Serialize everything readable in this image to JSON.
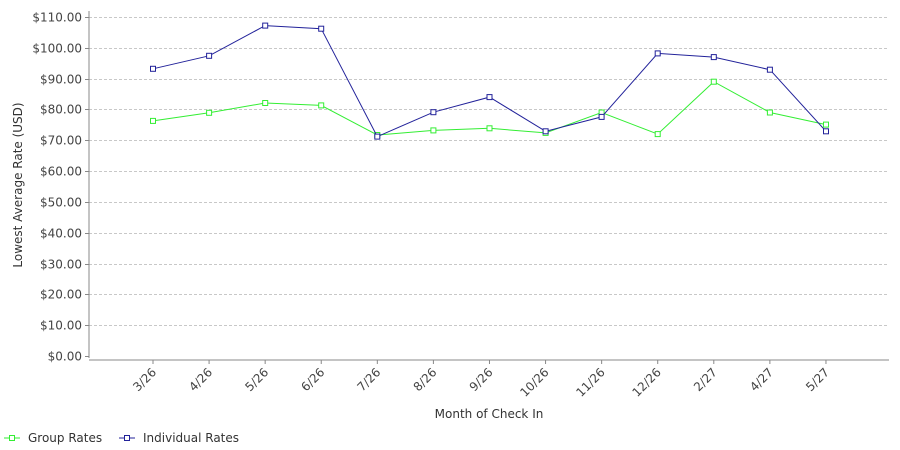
{
  "chart_data": {
    "type": "line",
    "xlabel": "Month of Check In",
    "ylabel": "Lowest Average Rate (USD)",
    "categories": [
      "3/26",
      "4/26",
      "5/26",
      "6/26",
      "7/26",
      "8/26",
      "9/26",
      "10/26",
      "11/26",
      "12/26",
      "2/27",
      "4/27",
      "5/27"
    ],
    "ylim": [
      0,
      110
    ],
    "y_ticks": [
      {
        "value": 0,
        "label": "$0.00"
      },
      {
        "value": 10,
        "label": "$10.00"
      },
      {
        "value": 20,
        "label": "$20.00"
      },
      {
        "value": 30,
        "label": "$30.00"
      },
      {
        "value": 40,
        "label": "$40.00"
      },
      {
        "value": 50,
        "label": "$50.00"
      },
      {
        "value": 60,
        "label": "$60.00"
      },
      {
        "value": 70,
        "label": "$70.00"
      },
      {
        "value": 80,
        "label": "$80.00"
      },
      {
        "value": 90,
        "label": "$90.00"
      },
      {
        "value": 100,
        "label": "$100.00"
      },
      {
        "value": 110,
        "label": "$110.00"
      }
    ],
    "grid": true,
    "legend_position": "bottom-left",
    "series": [
      {
        "name": "Group Rates",
        "color": "#33ee33",
        "values": [
          76.3,
          78.9,
          82.1,
          81.3,
          71.7,
          73.2,
          73.9,
          72.4,
          79.0,
          72.0,
          89.0,
          79.0,
          75.1
        ]
      },
      {
        "name": "Individual Rates",
        "color": "#22229a",
        "values": [
          93.2,
          97.4,
          107.2,
          106.2,
          71.2,
          79.1,
          84.0,
          72.9,
          77.6,
          98.2,
          97.0,
          92.9,
          72.9
        ]
      }
    ]
  }
}
